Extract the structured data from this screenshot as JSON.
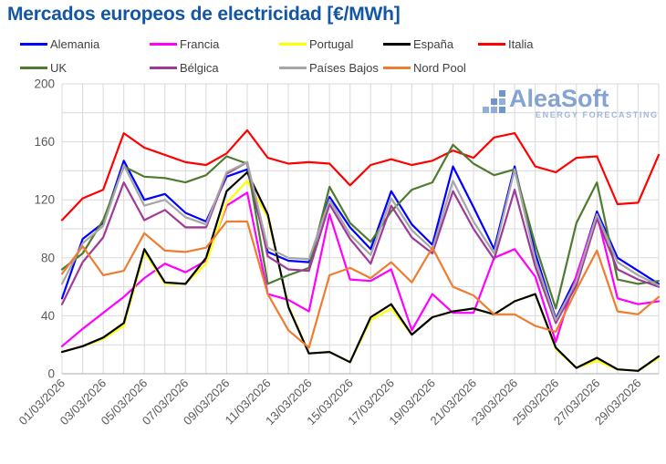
{
  "title": "Mercados europeos de electricidad [€/MWh]",
  "watermark": {
    "brand": "AleaSoft",
    "tagline": "ENERGY FORECASTING"
  },
  "colors": {
    "title_blue": "#1356A5",
    "tick_gray": "#595959",
    "grid_gray": "#D9D9D9",
    "axis_gray": "#ABABAB"
  },
  "chart_data": {
    "type": "line",
    "title": "Mercados europeos de electricidad [€/MWh]",
    "xlabel": "",
    "ylabel": "",
    "ylim": [
      0,
      200
    ],
    "y_ticks_labeled": [
      0,
      40,
      80,
      120,
      160,
      200
    ],
    "y_grid_step": 20,
    "grid": true,
    "legend_position": "top",
    "x": [
      "01/03/2026",
      "02/03/2026",
      "03/03/2026",
      "04/03/2026",
      "05/03/2026",
      "06/03/2026",
      "07/03/2026",
      "08/03/2026",
      "09/03/2026",
      "10/03/2026",
      "11/03/2026",
      "12/03/2026",
      "13/03/2026",
      "14/03/2026",
      "15/03/2026",
      "16/03/2026",
      "17/03/2026",
      "18/03/2026",
      "19/03/2026",
      "20/03/2026",
      "21/03/2026",
      "22/03/2026",
      "23/03/2026",
      "24/03/2026",
      "25/03/2026",
      "26/03/2026",
      "27/03/2026",
      "28/03/2026",
      "29/03/2026",
      "30/03/2026"
    ],
    "x_tick_every": 2,
    "series": [
      {
        "name": "Alemania",
        "color": "#0000FF",
        "values": [
          52,
          93,
          104,
          147,
          120,
          124,
          111,
          105,
          136,
          141,
          84,
          78,
          77,
          122,
          101,
          86,
          126,
          103,
          89,
          143,
          115,
          86,
          143,
          83,
          38,
          67,
          112,
          80,
          71,
          62
        ]
      },
      {
        "name": "Francia",
        "color": "#FF00FF",
        "values": [
          19,
          31,
          42,
          53,
          66,
          76,
          70,
          78,
          116,
          125,
          55,
          51,
          43,
          110,
          65,
          64,
          72,
          30,
          55,
          42,
          42,
          80,
          86,
          67,
          22,
          68,
          110,
          52,
          48,
          50
        ]
      },
      {
        "name": "Portugal",
        "color": "#FFFF00",
        "values": [
          15,
          19,
          24,
          33,
          84,
          62,
          62,
          76,
          118,
          133,
          108,
          47,
          14,
          15,
          8,
          37,
          45,
          27,
          39,
          43,
          45,
          41,
          50,
          55,
          17,
          4,
          9,
          3,
          2,
          11
        ]
      },
      {
        "name": "España",
        "color": "#000000",
        "values": [
          15,
          19,
          25,
          35,
          86,
          63,
          62,
          80,
          126,
          139,
          110,
          46,
          14,
          15,
          8,
          39,
          48,
          27,
          39,
          43,
          45,
          41,
          50,
          55,
          18,
          4,
          11,
          3,
          2,
          12
        ]
      },
      {
        "name": "Italia",
        "color": "#FF0000",
        "values": [
          106,
          121,
          127,
          166,
          156,
          151,
          146,
          144,
          152,
          168,
          149,
          145,
          146,
          145,
          130,
          144,
          148,
          144,
          147,
          154,
          149,
          163,
          166,
          143,
          139,
          149,
          150,
          117,
          118,
          151
        ]
      },
      {
        "name": "UK",
        "color": "#4E7B2F",
        "values": [
          72,
          83,
          106,
          143,
          136,
          135,
          132,
          137,
          150,
          145,
          62,
          68,
          73,
          129,
          104,
          91,
          112,
          127,
          132,
          158,
          145,
          137,
          141,
          89,
          45,
          104,
          132,
          65,
          62,
          64
        ]
      },
      {
        "name": "Bélgica",
        "color": "#9E3A97",
        "values": [
          48,
          77,
          94,
          132,
          106,
          113,
          101,
          101,
          138,
          146,
          81,
          72,
          71,
          117,
          93,
          76,
          116,
          94,
          83,
          126,
          100,
          79,
          127,
          74,
          35,
          61,
          107,
          72,
          65,
          60
        ]
      },
      {
        "name": "Países Bajos",
        "color": "#A6A6A6",
        "values": [
          62,
          90,
          102,
          144,
          116,
          120,
          108,
          103,
          139,
          146,
          87,
          80,
          79,
          120,
          96,
          82,
          121,
          99,
          86,
          133,
          105,
          83,
          141,
          79,
          37,
          64,
          110,
          77,
          68,
          61
        ]
      },
      {
        "name": "Nord Pool",
        "color": "#ED7D31",
        "values": [
          69,
          88,
          68,
          71,
          97,
          85,
          84,
          87,
          105,
          105,
          55,
          30,
          18,
          68,
          73,
          66,
          77,
          63,
          87,
          60,
          54,
          41,
          41,
          33,
          29,
          58,
          85,
          43,
          41,
          53
        ]
      }
    ]
  }
}
